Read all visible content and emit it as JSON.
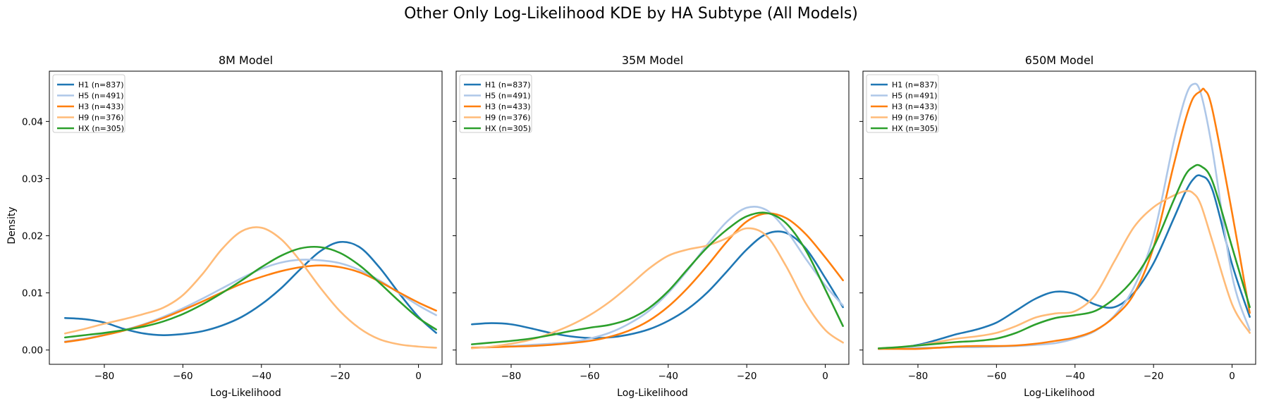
{
  "figure_title": "Other Only Log-Likelihood KDE by HA Subtype (All Models)",
  "ylabel": "Density",
  "xlabel": "Log-Likelihood",
  "x_ticks": [
    -80,
    -60,
    -40,
    -20,
    0
  ],
  "y_ticks": [
    0.0,
    0.01,
    0.02,
    0.03,
    0.04
  ],
  "x_tick_labels": [
    "−80",
    "−60",
    "−40",
    "−20",
    "0"
  ],
  "y_tick_labels": [
    "0.00",
    "0.01",
    "0.02",
    "0.03",
    "0.04"
  ],
  "colors": {
    "H1": "#1f77b4",
    "H5": "#aec7e8",
    "H3": "#ff7f0e",
    "H9": "#ffbb78",
    "HX": "#2ca02c"
  },
  "legend_labels": [
    "H1 (n=837)",
    "H5 (n=491)",
    "H3 (n=433)",
    "H9 (n=376)",
    "HX (n=305)"
  ],
  "chart_data": [
    {
      "type": "line",
      "title": "8M Model",
      "xlabel": "Log-Likelihood",
      "ylabel": "Density",
      "xlim": [
        -94,
        6
      ],
      "ylim": [
        -0.0025,
        0.0488
      ],
      "legend_position": "upper-left",
      "series": [
        {
          "name": "H1 (n=837)",
          "key": "H1",
          "x": [
            -90,
            -85,
            -80,
            -75,
            -70,
            -65,
            -60,
            -55,
            -50,
            -45,
            -40,
            -35,
            -30,
            -25,
            -20,
            -15,
            -10,
            -5,
            0,
            4.5
          ],
          "y": [
            0.0056,
            0.0054,
            0.0048,
            0.0037,
            0.0029,
            0.0026,
            0.0028,
            0.0033,
            0.0043,
            0.0058,
            0.008,
            0.0108,
            0.0142,
            0.0173,
            0.0189,
            0.018,
            0.0145,
            0.01,
            0.0058,
            0.003
          ]
        },
        {
          "name": "H5 (n=491)",
          "key": "H5",
          "x": [
            -90,
            -85,
            -80,
            -75,
            -70,
            -65,
            -60,
            -55,
            -50,
            -45,
            -40,
            -35,
            -30,
            -25,
            -20,
            -15,
            -10,
            -5,
            0,
            4.5
          ],
          "y": [
            0.0015,
            0.002,
            0.0027,
            0.0035,
            0.0045,
            0.0058,
            0.0073,
            0.009,
            0.0108,
            0.0126,
            0.0142,
            0.0153,
            0.0158,
            0.0157,
            0.0152,
            0.014,
            0.0122,
            0.01,
            0.0078,
            0.0061
          ]
        },
        {
          "name": "H3 (n=433)",
          "key": "H3",
          "x": [
            -90,
            -85,
            -80,
            -75,
            -70,
            -65,
            -60,
            -55,
            -50,
            -45,
            -40,
            -35,
            -30,
            -25,
            -20,
            -15,
            -10,
            -5,
            0,
            4.5
          ],
          "y": [
            0.0014,
            0.0019,
            0.0026,
            0.0034,
            0.0044,
            0.0056,
            0.007,
            0.0085,
            0.0101,
            0.0116,
            0.0128,
            0.0138,
            0.0145,
            0.0148,
            0.0145,
            0.0136,
            0.012,
            0.0101,
            0.0083,
            0.0069
          ]
        },
        {
          "name": "H9 (n=376)",
          "key": "H9",
          "x": [
            -90,
            -85,
            -80,
            -75,
            -70,
            -65,
            -60,
            -55,
            -50,
            -45,
            -40,
            -35,
            -30,
            -25,
            -20,
            -15,
            -10,
            -5,
            0,
            4.5
          ],
          "y": [
            0.0029,
            0.0037,
            0.0046,
            0.0054,
            0.0063,
            0.0074,
            0.0096,
            0.0133,
            0.0177,
            0.0208,
            0.0214,
            0.0194,
            0.0155,
            0.0109,
            0.0068,
            0.0038,
            0.0019,
            0.001,
            0.0006,
            0.0004
          ]
        },
        {
          "name": "HX (n=305)",
          "key": "HX",
          "x": [
            -90,
            -85,
            -80,
            -75,
            -70,
            -65,
            -60,
            -55,
            -50,
            -45,
            -40,
            -35,
            -30,
            -25,
            -20,
            -15,
            -10,
            -5,
            0,
            4.5
          ],
          "y": [
            0.0022,
            0.0026,
            0.003,
            0.0035,
            0.0041,
            0.005,
            0.0063,
            0.008,
            0.01,
            0.0122,
            0.0145,
            0.0165,
            0.0178,
            0.018,
            0.017,
            0.0148,
            0.0118,
            0.0086,
            0.0056,
            0.0036
          ]
        }
      ]
    },
    {
      "type": "line",
      "title": "35M Model",
      "xlabel": "Log-Likelihood",
      "ylabel": "Density",
      "xlim": [
        -94,
        6
      ],
      "ylim": [
        -0.0025,
        0.0488
      ],
      "legend_position": "upper-left",
      "series": [
        {
          "name": "H1 (n=837)",
          "key": "H1",
          "x": [
            -90,
            -85,
            -80,
            -75,
            -70,
            -65,
            -60,
            -55,
            -50,
            -45,
            -40,
            -35,
            -30,
            -25,
            -20,
            -15,
            -10,
            -5,
            0,
            4.5
          ],
          "y": [
            0.0045,
            0.0047,
            0.0045,
            0.0038,
            0.003,
            0.0024,
            0.0021,
            0.0022,
            0.0027,
            0.0036,
            0.0051,
            0.0072,
            0.0101,
            0.0138,
            0.0176,
            0.0203,
            0.0205,
            0.0178,
            0.0126,
            0.0075
          ]
        },
        {
          "name": "H5 (n=491)",
          "key": "H5",
          "x": [
            -90,
            -85,
            -80,
            -75,
            -70,
            -65,
            -60,
            -55,
            -50,
            -45,
            -40,
            -35,
            -30,
            -25,
            -20,
            -15,
            -10,
            -5,
            0,
            4.5
          ],
          "y": [
            0.0004,
            0.0005,
            0.0007,
            0.0009,
            0.0011,
            0.0014,
            0.002,
            0.003,
            0.0046,
            0.0068,
            0.01,
            0.014,
            0.0185,
            0.0225,
            0.0249,
            0.0245,
            0.021,
            0.016,
            0.0113,
            0.0078
          ]
        },
        {
          "name": "H3 (n=433)",
          "key": "H3",
          "x": [
            -90,
            -85,
            -80,
            -75,
            -70,
            -65,
            -60,
            -55,
            -50,
            -45,
            -40,
            -35,
            -30,
            -25,
            -20,
            -15,
            -10,
            -5,
            0,
            4.5
          ],
          "y": [
            0.0004,
            0.0005,
            0.0006,
            0.0007,
            0.0009,
            0.0012,
            0.0016,
            0.0023,
            0.0034,
            0.0051,
            0.0076,
            0.0109,
            0.0148,
            0.019,
            0.0225,
            0.0239,
            0.0231,
            0.0203,
            0.0162,
            0.0122
          ]
        },
        {
          "name": "H9 (n=376)",
          "key": "H9",
          "x": [
            -90,
            -85,
            -80,
            -75,
            -70,
            -65,
            -60,
            -55,
            -50,
            -45,
            -40,
            -35,
            -30,
            -25,
            -20,
            -15,
            -10,
            -5,
            0,
            4.5
          ],
          "y": [
            0.0003,
            0.0006,
            0.0011,
            0.0018,
            0.0029,
            0.0043,
            0.0061,
            0.0084,
            0.0112,
            0.0142,
            0.0165,
            0.0176,
            0.0183,
            0.0196,
            0.0213,
            0.02,
            0.0147,
            0.0082,
            0.0035,
            0.0013
          ]
        },
        {
          "name": "HX (n=305)",
          "key": "HX",
          "x": [
            -90,
            -85,
            -80,
            -75,
            -70,
            -65,
            -60,
            -55,
            -50,
            -45,
            -40,
            -35,
            -30,
            -25,
            -20,
            -15,
            -10,
            -5,
            0,
            4.5
          ],
          "y": [
            0.001,
            0.0013,
            0.0016,
            0.002,
            0.0026,
            0.0033,
            0.0039,
            0.0044,
            0.0054,
            0.0073,
            0.0103,
            0.0142,
            0.018,
            0.0211,
            0.0234,
            0.024,
            0.0222,
            0.0175,
            0.0106,
            0.0042
          ]
        }
      ]
    },
    {
      "type": "line",
      "title": "650M Model",
      "xlabel": "Log-Likelihood",
      "ylabel": "Density",
      "xlim": [
        -94,
        6
      ],
      "ylim": [
        -0.0025,
        0.0488
      ],
      "legend_position": "upper-left",
      "series": [
        {
          "name": "H1 (n=837)",
          "key": "H1",
          "x": [
            -90,
            -85,
            -80,
            -75,
            -70,
            -65,
            -60,
            -55,
            -50,
            -45,
            -40,
            -35,
            -30,
            -25,
            -20,
            -15,
            -12,
            -10,
            -8,
            -5,
            0,
            4.5
          ],
          "y": [
            0.0002,
            0.0004,
            0.0009,
            0.0018,
            0.0028,
            0.0036,
            0.0048,
            0.0069,
            0.009,
            0.0102,
            0.0098,
            0.008,
            0.0075,
            0.01,
            0.0152,
            0.0228,
            0.0275,
            0.0298,
            0.0305,
            0.028,
            0.015,
            0.0058
          ]
        },
        {
          "name": "H5 (n=491)",
          "key": "H5",
          "x": [
            -90,
            -85,
            -80,
            -75,
            -70,
            -65,
            -60,
            -55,
            -50,
            -45,
            -40,
            -35,
            -30,
            -25,
            -20,
            -15,
            -12,
            -10,
            -8,
            -5,
            0,
            4.5
          ],
          "y": [
            0.0003,
            0.0003,
            0.0004,
            0.0004,
            0.0005,
            0.0005,
            0.0006,
            0.0007,
            0.0009,
            0.0012,
            0.002,
            0.0033,
            0.006,
            0.011,
            0.02,
            0.036,
            0.044,
            0.0465,
            0.045,
            0.035,
            0.013,
            0.0035
          ]
        },
        {
          "name": "H3 (n=433)",
          "key": "H3",
          "x": [
            -90,
            -85,
            -80,
            -75,
            -70,
            -65,
            -60,
            -55,
            -50,
            -45,
            -40,
            -35,
            -30,
            -25,
            -20,
            -15,
            -12,
            -10,
            -8,
            -7,
            -5,
            0,
            4.5
          ],
          "y": [
            0.0002,
            0.0002,
            0.0002,
            0.0004,
            0.0006,
            0.0007,
            0.0007,
            0.0008,
            0.0011,
            0.0016,
            0.0022,
            0.0034,
            0.0058,
            0.0098,
            0.018,
            0.032,
            0.04,
            0.044,
            0.0453,
            0.0455,
            0.042,
            0.024,
            0.0065
          ]
        },
        {
          "name": "H9 (n=376)",
          "key": "H9",
          "x": [
            -90,
            -85,
            -80,
            -75,
            -70,
            -65,
            -60,
            -55,
            -50,
            -45,
            -40,
            -35,
            -30,
            -25,
            -20,
            -15,
            -12,
            -10,
            -8,
            -5,
            0,
            4.5
          ],
          "y": [
            0.0003,
            0.0005,
            0.0008,
            0.0014,
            0.002,
            0.0024,
            0.003,
            0.0042,
            0.0057,
            0.0064,
            0.0068,
            0.0095,
            0.0155,
            0.0215,
            0.025,
            0.027,
            0.0278,
            0.0275,
            0.0255,
            0.019,
            0.008,
            0.003
          ]
        },
        {
          "name": "HX (n=305)",
          "key": "HX",
          "x": [
            -90,
            -85,
            -80,
            -75,
            -70,
            -65,
            -60,
            -55,
            -50,
            -45,
            -40,
            -35,
            -30,
            -25,
            -20,
            -15,
            -12,
            -10,
            -8,
            -5,
            0,
            4.5
          ],
          "y": [
            0.0003,
            0.0005,
            0.0008,
            0.0011,
            0.0014,
            0.0016,
            0.002,
            0.003,
            0.0045,
            0.0056,
            0.0061,
            0.0068,
            0.009,
            0.0125,
            0.018,
            0.026,
            0.0305,
            0.032,
            0.0322,
            0.0295,
            0.018,
            0.0075
          ]
        }
      ]
    }
  ]
}
